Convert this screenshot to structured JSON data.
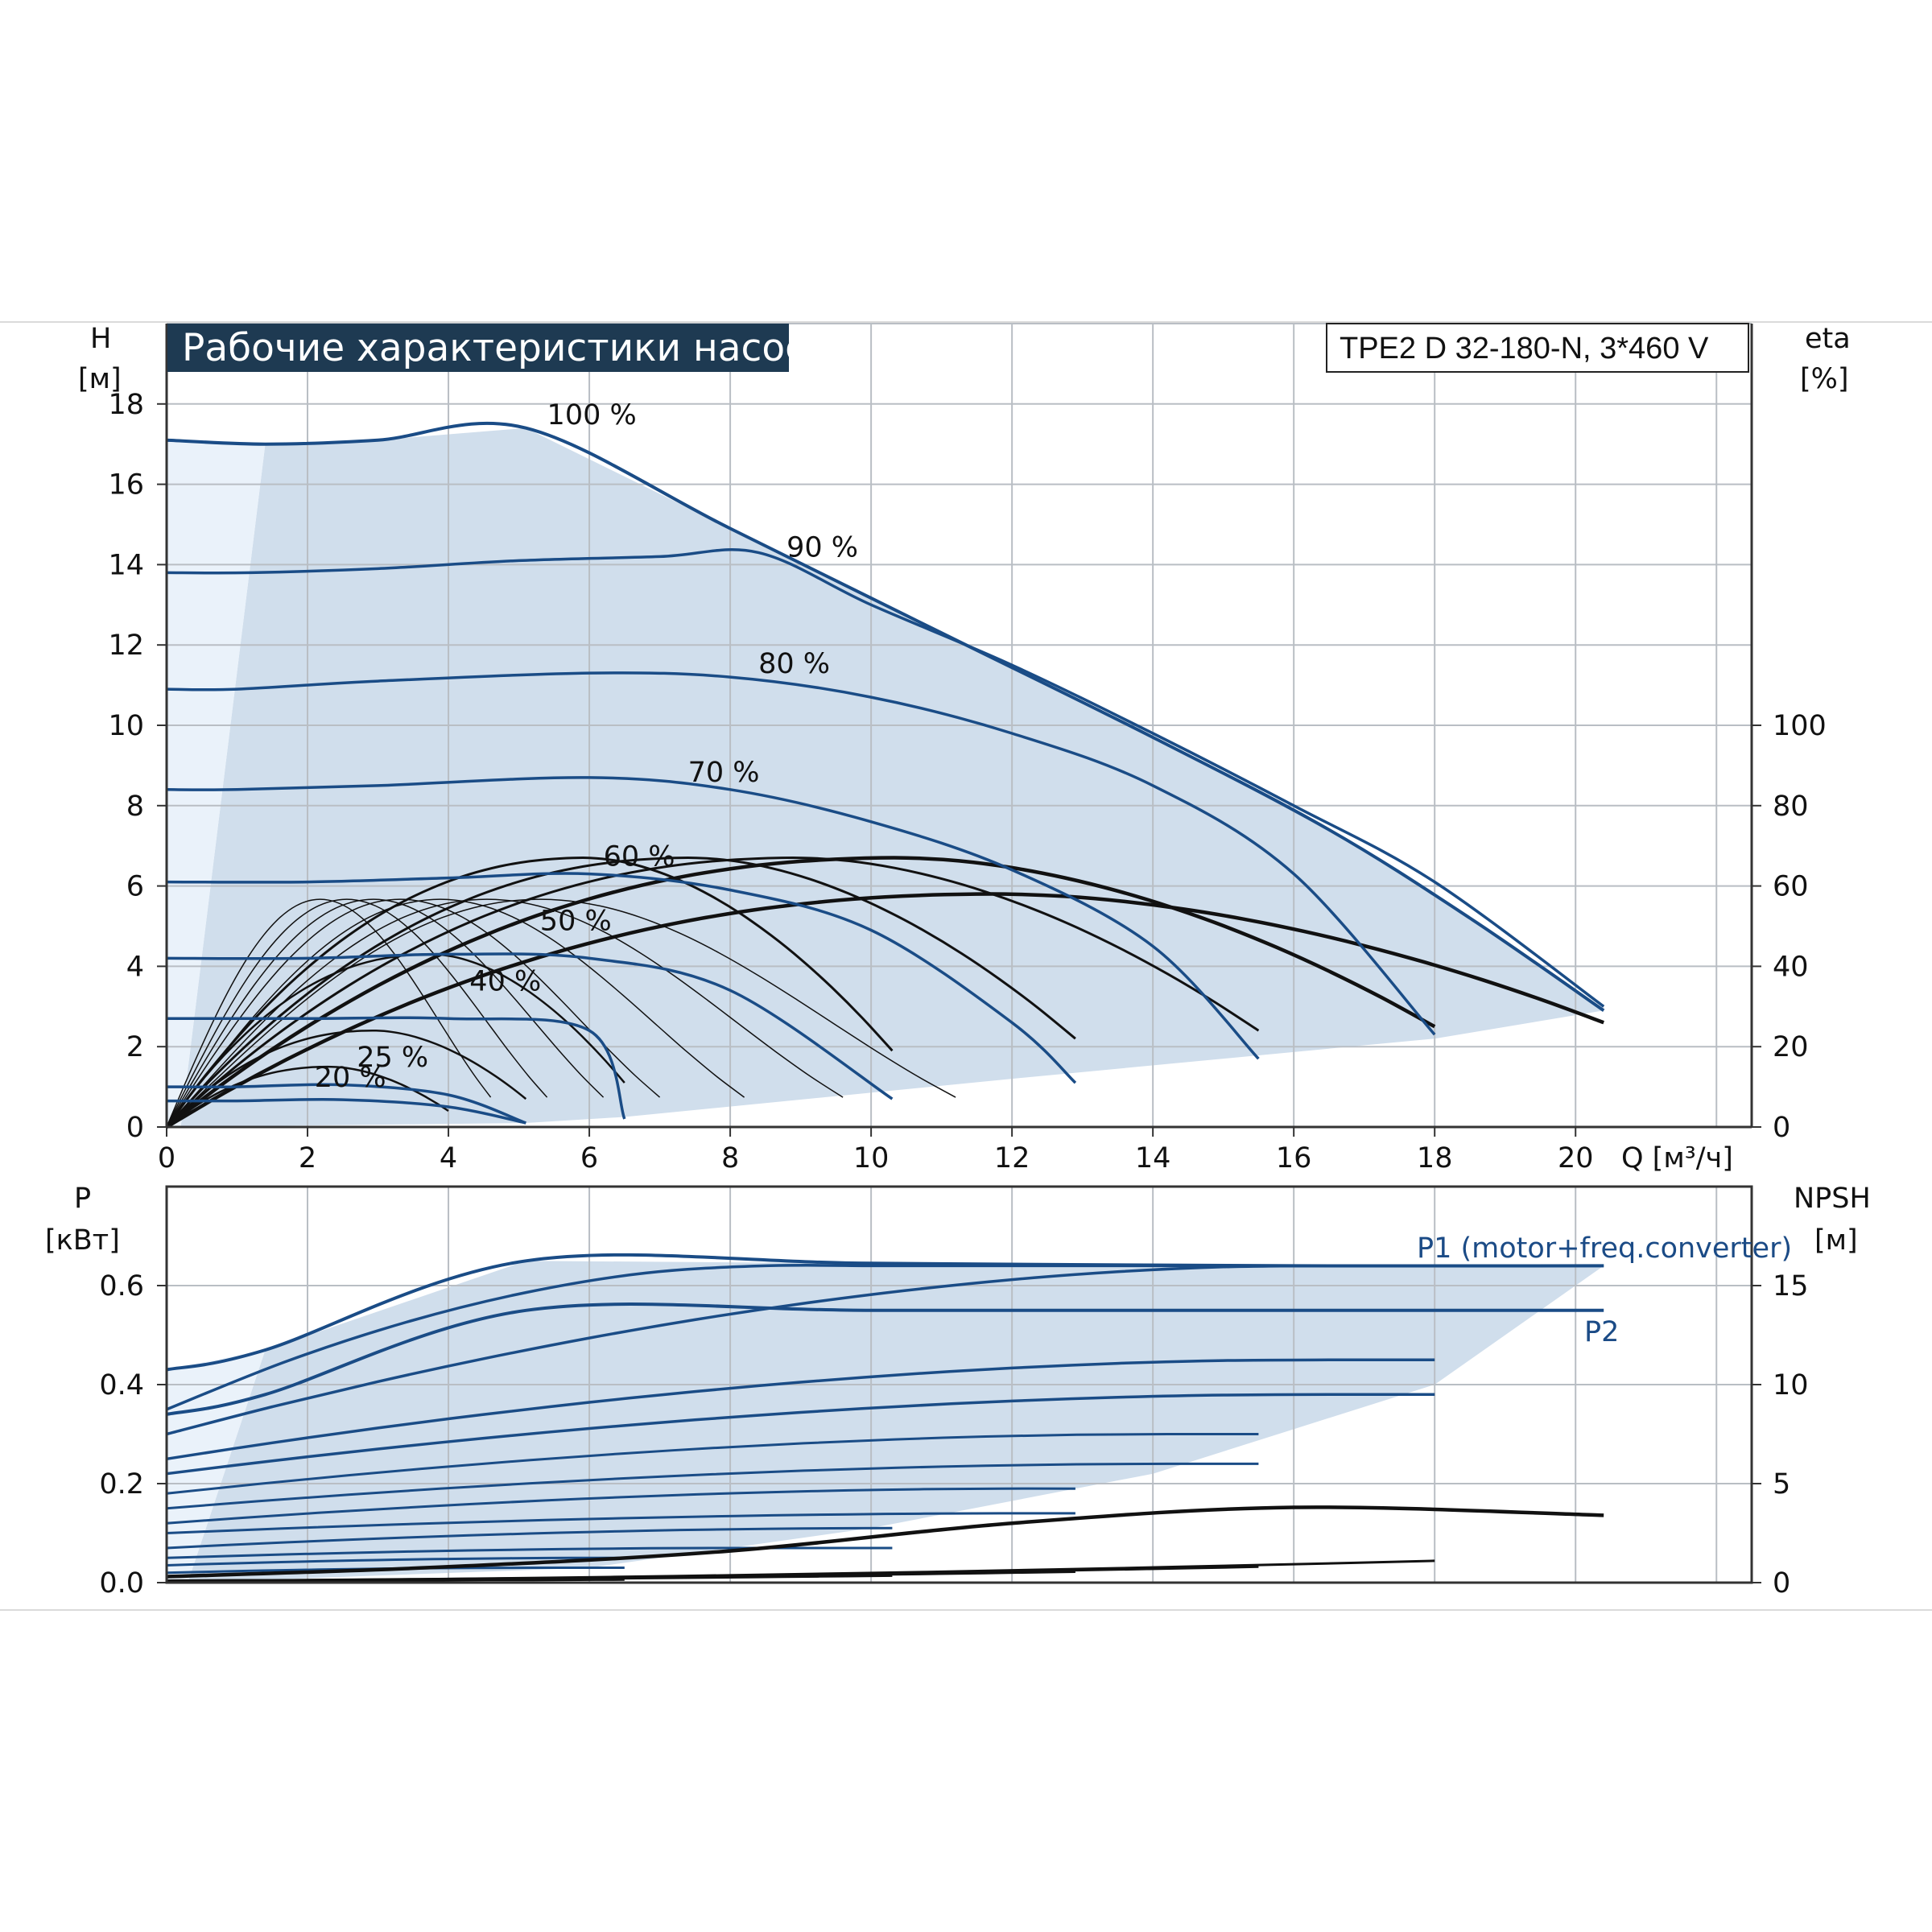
{
  "title": "Рабочие характеристики насоса",
  "model": "TPE2 D 32-180-N, 3*460 V",
  "colors": {
    "pump_curve": "#1a4c86",
    "efficiency_curve": "#111111",
    "envelope_fill": "#d0deec",
    "envelope_light": "#eaf2fa",
    "grid": "#b9bec4",
    "title_bg": "#1e3a52"
  },
  "chart_data": [
    {
      "type": "line",
      "panel": "head",
      "xlabel": "Q [м³/ч]",
      "x_unit_label": "Q [м³/ч]",
      "xlim": [
        0,
        22.5
      ],
      "x_ticks": [
        "0",
        "2",
        "4",
        "6",
        "8",
        "10",
        "12",
        "14",
        "16",
        "18",
        "20"
      ],
      "y_left_label": "H",
      "y_left_unit": "[м]",
      "ylim": [
        0,
        20
      ],
      "y_left_ticks": [
        "0",
        "2",
        "4",
        "6",
        "8",
        "10",
        "12",
        "14",
        "16",
        "18"
      ],
      "y_right_label": "eta",
      "y_right_unit": "[%]",
      "y_right_ticks": [
        "0",
        "20",
        "40",
        "60",
        "80",
        "100"
      ],
      "speed_labels": [
        {
          "text": "100 %",
          "q": 5.4,
          "h": 17.5
        },
        {
          "text": "90 %",
          "q": 8.8,
          "h": 14.2
        },
        {
          "text": "80 %",
          "q": 8.4,
          "h": 11.3
        },
        {
          "text": "70 %",
          "q": 7.4,
          "h": 8.6
        },
        {
          "text": "60 %",
          "q": 6.2,
          "h": 6.5
        },
        {
          "text": "50 %",
          "q": 5.3,
          "h": 4.9
        },
        {
          "text": "40 %",
          "q": 4.3,
          "h": 3.4
        },
        {
          "text": "25 %",
          "q": 2.7,
          "h": 1.5
        },
        {
          "text": "20 %",
          "q": 2.1,
          "h": 1.0
        }
      ],
      "series": [
        {
          "name": "100 %",
          "x": [
            0,
            1.4,
            3.0,
            5.1,
            8.0,
            11.0,
            14.0,
            16.5,
            18.5,
            20.4
          ],
          "y": [
            17.1,
            17.0,
            17.1,
            17.4,
            14.9,
            12.3,
            9.7,
            7.4,
            5.2,
            2.9
          ]
        },
        {
          "name": "90 %",
          "x": [
            0,
            1.2,
            3.0,
            5.0,
            7.0,
            8.4,
            10.0,
            12.0,
            14.0,
            16.0,
            18.0,
            20.4
          ],
          "y": [
            13.8,
            13.8,
            13.9,
            14.1,
            14.2,
            14.3,
            13.0,
            11.5,
            9.8,
            8.0,
            6.1,
            3.0
          ]
        },
        {
          "name": "80 %",
          "x": [
            0,
            1.0,
            3.0,
            6.0,
            8.0,
            10.0,
            12.0,
            14.0,
            16.0,
            18.0
          ],
          "y": [
            10.9,
            10.9,
            11.1,
            11.3,
            11.2,
            10.7,
            9.8,
            8.5,
            6.3,
            2.3
          ]
        },
        {
          "name": "70 %",
          "x": [
            0,
            1.0,
            3.0,
            6.0,
            8.0,
            10.0,
            12.0,
            14.0,
            15.5
          ],
          "y": [
            8.4,
            8.4,
            8.5,
            8.7,
            8.4,
            7.6,
            6.4,
            4.5,
            1.7
          ]
        },
        {
          "name": "60 %",
          "x": [
            0,
            2.0,
            4.0,
            6.0,
            8.0,
            10.0,
            12.0,
            12.9
          ],
          "y": [
            6.1,
            6.1,
            6.2,
            6.3,
            5.9,
            4.9,
            2.6,
            1.1
          ]
        },
        {
          "name": "50 %",
          "x": [
            0,
            2.0,
            4.0,
            6.0,
            8.0,
            10.3
          ],
          "y": [
            4.2,
            4.2,
            4.3,
            4.2,
            3.4,
            0.7
          ]
        },
        {
          "name": "40 %",
          "x": [
            0,
            2.0,
            4.0,
            6.0,
            6.5
          ],
          "y": [
            2.7,
            2.7,
            2.7,
            2.4,
            0.2
          ]
        },
        {
          "name": "25 %",
          "x": [
            0,
            1.0,
            2.5,
            4.0,
            5.1
          ],
          "y": [
            1.0,
            1.0,
            1.05,
            0.8,
            0.1
          ]
        },
        {
          "name": "20 %",
          "x": [
            0,
            1.0,
            2.5,
            4.0,
            5.1
          ],
          "y": [
            0.65,
            0.65,
            0.68,
            0.5,
            0.1
          ]
        }
      ],
      "efficiency_curves": [
        {
          "q_end": 20.4,
          "eta_end": 26,
          "eta_peak": 58
        },
        {
          "q_end": 18.0,
          "eta_end": 25,
          "eta_peak": 67
        },
        {
          "q_end": 15.5,
          "eta_end": 24,
          "eta_peak": 67
        },
        {
          "q_end": 12.9,
          "eta_end": 22,
          "eta_peak": 67
        },
        {
          "q_end": 10.3,
          "eta_end": 19,
          "eta_peak": 67
        },
        {
          "q_end": 6.5,
          "eta_end": 11,
          "eta_peak": 43
        },
        {
          "q_end": 5.1,
          "eta_end": 7,
          "eta_peak": 24
        },
        {
          "q_end": 4.0,
          "eta_end": 4,
          "eta_peak": 15
        }
      ]
    },
    {
      "type": "line",
      "panel": "power",
      "xlim": [
        0,
        22.5
      ],
      "y_left_label": "P",
      "y_left_unit": "[кВт]",
      "ylim": [
        0,
        0.8
      ],
      "y_left_ticks": [
        "0.0",
        "0.2",
        "0.4",
        "0.6"
      ],
      "y_right_label": "NPSH",
      "y_right_unit": "[м]",
      "y_right_ticks": [
        "0",
        "5",
        "10",
        "15"
      ],
      "series_labels": [
        "P1 (motor+freq.converter)",
        "P2"
      ],
      "series": [
        {
          "name": "P1 (motor+freq.converter)",
          "x": [
            0,
            1.4,
            5.1,
            10.0,
            16.0,
            20.4
          ],
          "y": [
            0.43,
            0.47,
            0.65,
            0.645,
            0.64,
            0.64
          ]
        },
        {
          "name": "P2",
          "x": [
            0,
            1.4,
            5.1,
            10.0,
            16.0,
            20.4
          ],
          "y": [
            0.34,
            0.38,
            0.55,
            0.55,
            0.55,
            0.55
          ]
        }
      ],
      "npsh_values": {
        "x": [
          0,
          4.0,
          8.0,
          12.0,
          16.0,
          20.4
        ],
        "y": [
          0.3,
          0.8,
          1.6,
          3.0,
          3.8,
          3.4
        ]
      }
    }
  ]
}
